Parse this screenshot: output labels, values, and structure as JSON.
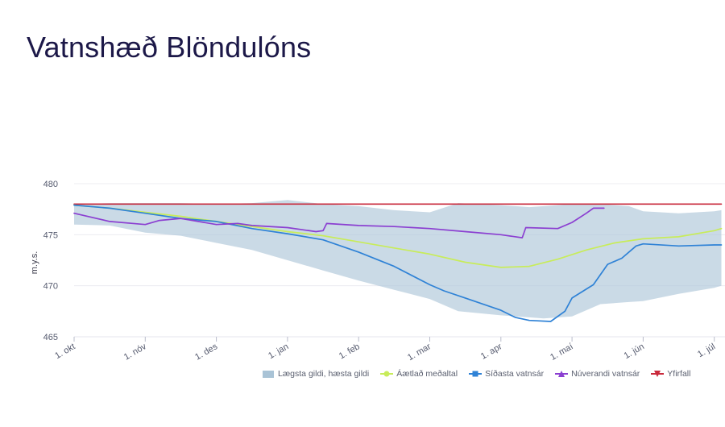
{
  "page": {
    "title": "Vatnshæð Blöndulóns"
  },
  "chart_data": {
    "type": "line",
    "title": "Vatnshæð Blöndulóns",
    "ylabel": "m.y.s.",
    "xlabel": "",
    "ylim": [
      465,
      480
    ],
    "yticks": [
      465,
      470,
      475,
      480
    ],
    "xlim": [
      0,
      9.1
    ],
    "x_ticks": [
      {
        "label": "1. okt",
        "x": 0
      },
      {
        "label": "1. nóv",
        "x": 1
      },
      {
        "label": "1. des",
        "x": 2
      },
      {
        "label": "1. jan",
        "x": 3
      },
      {
        "label": "1. feb",
        "x": 4
      },
      {
        "label": "1. mar",
        "x": 5
      },
      {
        "label": "1. apr",
        "x": 6
      },
      {
        "label": "1. maí",
        "x": 7
      },
      {
        "label": "1. jún",
        "x": 8
      },
      {
        "label": "1. júl",
        "x": 9
      }
    ],
    "band": {
      "name": "Lægsta gildi, hæsta gildi",
      "color": "#a9c3d6",
      "x": [
        0,
        0.5,
        1,
        1.5,
        2,
        2.5,
        3,
        3.5,
        4,
        4.5,
        5,
        5.4,
        6,
        6.4,
        6.6,
        7,
        7.4,
        7.8,
        8,
        8.5,
        9,
        9.1
      ],
      "low": [
        476,
        475.9,
        475.2,
        474.9,
        474.2,
        473.5,
        472.5,
        471.5,
        470.5,
        469.6,
        468.7,
        467.5,
        467.1,
        466.9,
        466.8,
        467,
        468.2,
        468.4,
        468.5,
        469.2,
        469.8,
        470
      ],
      "high": [
        478,
        478.1,
        478.1,
        478.1,
        478,
        478.1,
        478.4,
        478,
        477.8,
        477.4,
        477.2,
        478.1,
        477.9,
        477.7,
        477.8,
        478,
        478,
        477.8,
        477.3,
        477.1,
        477.3,
        477.4
      ]
    },
    "series": [
      {
        "name": "Áætlað meðaltal",
        "color": "#c8ec5a",
        "marker": "circle",
        "x": [
          0,
          0.5,
          1,
          1.5,
          2,
          2.5,
          3,
          3.5,
          4,
          4.5,
          5,
          5.5,
          6,
          6.4,
          6.8,
          7.2,
          7.6,
          8,
          8.5,
          9,
          9.1
        ],
        "values": [
          477.9,
          477.6,
          477.2,
          476.8,
          476.3,
          475.8,
          475.3,
          474.9,
          474.3,
          473.7,
          473.1,
          472.3,
          471.8,
          471.9,
          472.6,
          473.5,
          474.2,
          474.6,
          474.8,
          475.4,
          475.6
        ]
      },
      {
        "name": "Síðasta vatnsár",
        "color": "#2f82d6",
        "marker": "square",
        "x": [
          0,
          0.5,
          1,
          1.5,
          2,
          2.5,
          3,
          3.5,
          4,
          4.5,
          5,
          5.2,
          5.5,
          6,
          6.2,
          6.4,
          6.7,
          6.9,
          7,
          7.3,
          7.5,
          7.7,
          7.9,
          8,
          8.5,
          9,
          9.1
        ],
        "values": [
          477.9,
          477.6,
          477.1,
          476.6,
          476.3,
          475.6,
          475.1,
          474.5,
          473.3,
          471.9,
          470.1,
          469.5,
          468.8,
          467.6,
          466.9,
          466.6,
          466.5,
          467.5,
          468.8,
          470.1,
          472.1,
          472.7,
          473.9,
          474.1,
          473.9,
          474,
          474
        ]
      },
      {
        "name": "Núverandi vatnsár",
        "color": "#8b3fd1",
        "marker": "triangle-up",
        "x": [
          0,
          0.5,
          1,
          1.2,
          1.5,
          2,
          2.3,
          2.5,
          3,
          3.4,
          3.5,
          3.55,
          4,
          4.5,
          5,
          5.5,
          6,
          6.3,
          6.35,
          6.8,
          7,
          7.2,
          7.3,
          7.45
        ],
        "values": [
          477.1,
          476.3,
          476,
          476.4,
          476.6,
          476,
          476.1,
          475.9,
          475.7,
          475.3,
          475.4,
          476.1,
          475.9,
          475.8,
          475.6,
          475.3,
          475,
          474.7,
          475.7,
          475.6,
          476.2,
          477.1,
          477.6,
          477.6
        ]
      },
      {
        "name": "Yfirfall",
        "color": "#c92a3c",
        "marker": "triangle-down",
        "x": [
          0,
          9.1
        ],
        "values": [
          478,
          478
        ]
      }
    ],
    "legend": {
      "position": "bottom-right",
      "items": [
        {
          "label": "Lægsta gildi, hæsta gildi",
          "color": "#a9c3d6",
          "marker": "area"
        },
        {
          "label": "Áætlað meðaltal",
          "color": "#c8ec5a",
          "marker": "circle"
        },
        {
          "label": "Síðasta vatnsár",
          "color": "#2f82d6",
          "marker": "square"
        },
        {
          "label": "Núverandi vatnsár",
          "color": "#8b3fd1",
          "marker": "triangle-up"
        },
        {
          "label": "Yfirfall",
          "color": "#c92a3c",
          "marker": "triangle-down"
        }
      ]
    }
  }
}
